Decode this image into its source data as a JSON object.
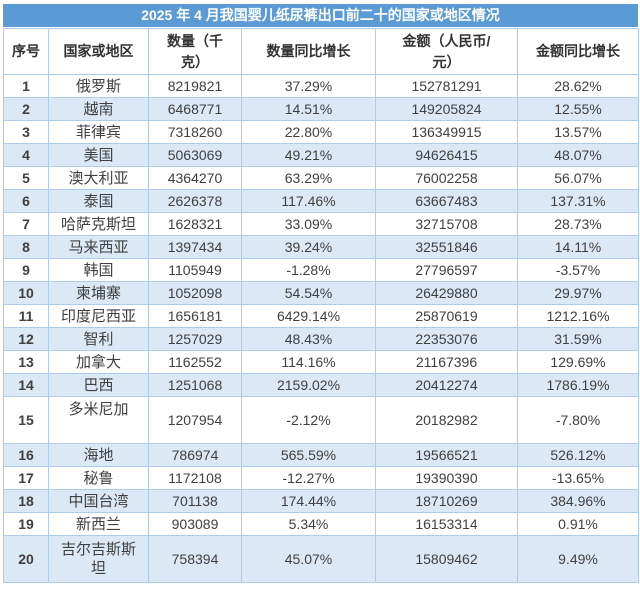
{
  "chart_data": {
    "type": "table",
    "title": "2025 年 4 月我国婴儿纸尿裤出口前二十的国家或地区情况",
    "columns": [
      "序号",
      "国家或地区",
      "数量（千克）",
      "数量同比增长",
      "金额（人民币/元）",
      "金额同比增长"
    ],
    "rows": [
      [
        "1",
        "俄罗斯",
        "8219821",
        "37.29%",
        "152781291",
        "28.62%"
      ],
      [
        "2",
        "越南",
        "6468771",
        "14.51%",
        "149205824",
        "12.55%"
      ],
      [
        "3",
        "菲律宾",
        "7318260",
        "22.80%",
        "136349915",
        "13.57%"
      ],
      [
        "4",
        "美国",
        "5063069",
        "49.21%",
        "94626415",
        "48.07%"
      ],
      [
        "5",
        "澳大利亚",
        "4364270",
        "63.29%",
        "76002258",
        "56.07%"
      ],
      [
        "6",
        "泰国",
        "2626378",
        "117.46%",
        "63667483",
        "137.31%"
      ],
      [
        "7",
        "哈萨克斯坦",
        "1628321",
        "33.09%",
        "32715708",
        "28.73%"
      ],
      [
        "8",
        "马来西亚",
        "1397434",
        "39.24%",
        "32551846",
        "14.11%"
      ],
      [
        "9",
        "韩国",
        "1105949",
        "-1.28%",
        "27796597",
        "-3.57%"
      ],
      [
        "10",
        "柬埔寨",
        "1052098",
        "54.54%",
        "26429880",
        "29.97%"
      ],
      [
        "11",
        "印度尼西亚",
        "1656181",
        "6429.14%",
        "25870619",
        "1212.16%"
      ],
      [
        "12",
        "智利",
        "1257029",
        "48.43%",
        "22353076",
        "31.59%"
      ],
      [
        "13",
        "加拿大",
        "1162552",
        "114.16%",
        "21167396",
        "129.69%"
      ],
      [
        "14",
        "巴西",
        "1251068",
        "2159.02%",
        "20412274",
        "1786.19%"
      ],
      [
        "15",
        "多米尼加",
        "1207954",
        "-2.12%",
        "20182982",
        "-7.80%"
      ],
      [
        "16",
        "海地",
        "786974",
        "565.59%",
        "19566521",
        "526.12%"
      ],
      [
        "17",
        "秘鲁",
        "1172108",
        "-12.27%",
        "19390390",
        "-13.65%"
      ],
      [
        "18",
        "中国台湾",
        "701138",
        "174.44%",
        "18710269",
        "384.96%"
      ],
      [
        "19",
        "新西兰",
        "903089",
        "5.34%",
        "16153314",
        "0.91%"
      ],
      [
        "20",
        "吉尔吉斯斯坦",
        "758394",
        "45.07%",
        "15809462",
        "9.49%"
      ]
    ]
  },
  "colors": {
    "title_bar": "#5b9bd5",
    "title_text": "#ffffff",
    "header_bg": "#ffffff",
    "header_text": "#333333",
    "row_bg": "#ffffff",
    "alt_row": "#dbe8f6",
    "border": "#aecbe9",
    "body_text": "#404040"
  }
}
